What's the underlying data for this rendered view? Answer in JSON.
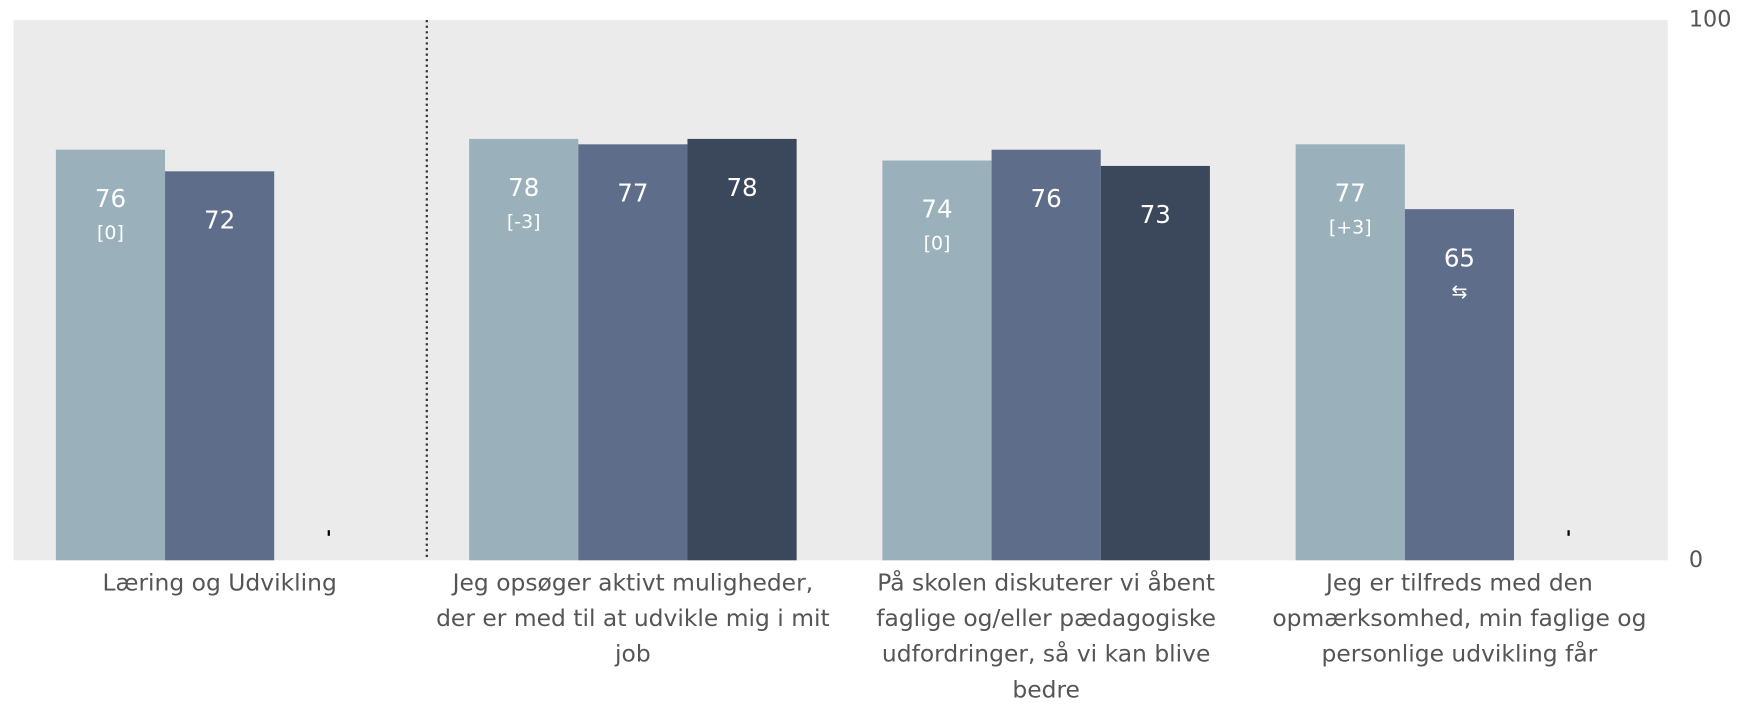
{
  "chart_data": {
    "type": "bar",
    "categories": [
      "Læring og Udvikling",
      "Jeg opsøger aktivt muligheder, der er med til at udvikle mig i mit job",
      "På skolen diskuterer vi åbent faglige og/eller pædagogiske udfordringer, så vi kan blive bedre",
      "Jeg er tilfreds med den opmærksomhed, min faglige og personlige udvikling får"
    ],
    "series": [
      {
        "color": "#9ab1bc",
        "values": [
          76,
          78,
          74,
          77
        ],
        "sublabels": [
          "[0]",
          "[-3]",
          "[0]",
          "[+3]"
        ]
      },
      {
        "color": "#5e6e8a",
        "values": [
          72,
          77,
          76,
          65
        ],
        "sublabels": [
          null,
          null,
          null,
          "⇆"
        ]
      },
      {
        "color": "#3b475b",
        "values": [
          null,
          78,
          73,
          null
        ]
      }
    ],
    "ylim": [
      0,
      100
    ],
    "yticks": [
      0,
      100
    ],
    "background": "#ebebeb"
  }
}
